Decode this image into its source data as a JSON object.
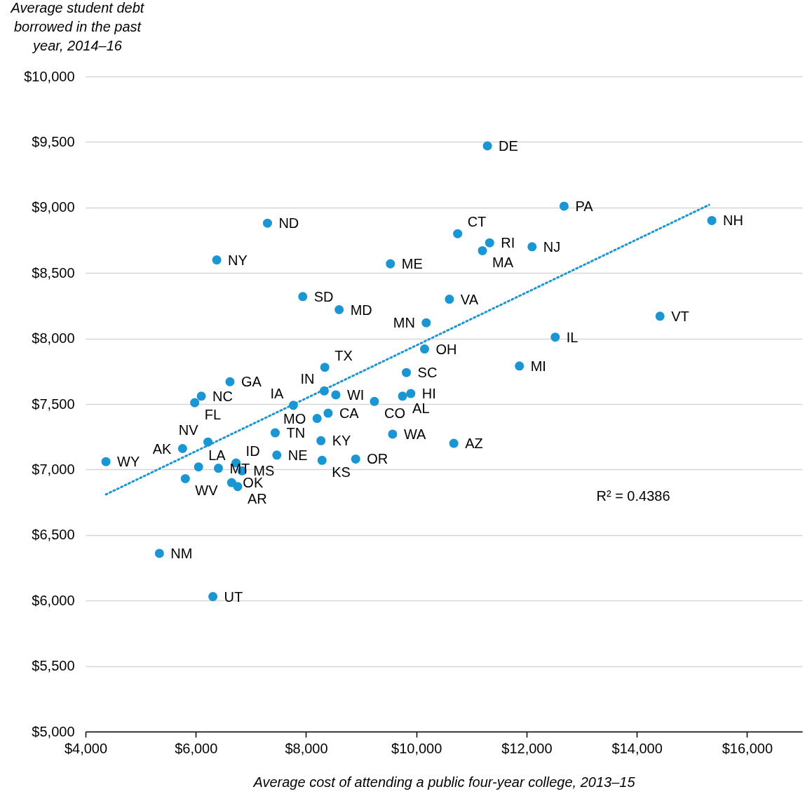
{
  "chart_data": {
    "type": "scatter",
    "xlabel": "Average cost of attending a public four-year college, 2013–15",
    "ylabel": "Average student debt borrowed in the past year, 2014–16",
    "xlim": [
      4000,
      17000
    ],
    "xticks": [
      {
        "value": 4000,
        "label": "$4,000"
      },
      {
        "value": 6000,
        "label": "$6,000"
      },
      {
        "value": 8000,
        "label": "$8,000"
      },
      {
        "value": 10000,
        "label": "$10,000"
      },
      {
        "value": 12000,
        "label": "$12,000"
      },
      {
        "value": 14000,
        "label": "$14,000"
      },
      {
        "value": 16000,
        "label": "$16,000"
      }
    ],
    "ylim": [
      5000,
      10000
    ],
    "yticks": [
      {
        "value": 5000,
        "label": "$5,000"
      },
      {
        "value": 5500,
        "label": "$5,500"
      },
      {
        "value": 6000,
        "label": "$6,000"
      },
      {
        "value": 6500,
        "label": "$6,500"
      },
      {
        "value": 7000,
        "label": "$7,000"
      },
      {
        "value": 7500,
        "label": "$7,500"
      },
      {
        "value": 8000,
        "label": "$8,000"
      },
      {
        "value": 8500,
        "label": "$8,500"
      },
      {
        "value": 9000,
        "label": "$9,000"
      },
      {
        "value": 9500,
        "label": "$9,500"
      },
      {
        "value": 10000,
        "label": "$10,000"
      }
    ],
    "grid": "y",
    "marker": "circle",
    "series": [
      {
        "color": "#1a96d4",
        "x": [
          11290,
          12680,
          15360,
          7300,
          10750,
          11330,
          11200,
          12100,
          6380,
          9530,
          7940,
          10600,
          8600,
          14420,
          10180,
          12520,
          10150,
          11870,
          8340,
          9820,
          6620,
          6100,
          5980,
          8330,
          8540,
          9750,
          9900,
          9240,
          7770,
          8400,
          8200,
          7440,
          9570,
          8270,
          10680,
          5760,
          6220,
          7470,
          8290,
          8900,
          4370,
          6730,
          6050,
          6410,
          6840,
          5810,
          6650,
          6760,
          5340,
          6310
        ],
        "values": [
          9470,
          9010,
          8900,
          8880,
          8800,
          8730,
          8670,
          8700,
          8600,
          8570,
          8320,
          8300,
          8220,
          8170,
          8120,
          8010,
          7920,
          7790,
          7780,
          7740,
          7670,
          7560,
          7510,
          7600,
          7570,
          7560,
          7580,
          7520,
          7490,
          7430,
          7390,
          7280,
          7270,
          7220,
          7200,
          7160,
          7210,
          7110,
          7070,
          7080,
          7060,
          7050,
          7020,
          7010,
          6990,
          6930,
          6900,
          6870,
          6360,
          6030
        ],
        "value_labels": [
          "DE",
          "PA",
          "NH",
          "ND",
          "CT",
          "RI",
          "MA",
          "NJ",
          "NY",
          "ME",
          "SD",
          "VA",
          "MD",
          "VT",
          "MN",
          "IL",
          "OH",
          "MI",
          "TX",
          "SC",
          "GA",
          "NC",
          "FL",
          "IN",
          "WI",
          "AL",
          "HI",
          "CO",
          "IA",
          "CA",
          "MO",
          "TN",
          "WA",
          "KY",
          "AZ",
          "AK",
          "NV",
          "NE",
          "KS",
          "OR",
          "WY",
          "ID",
          "LA",
          "MT",
          "MS",
          "WV",
          "OK",
          "AR",
          "NM",
          "UT"
        ]
      },
      {
        "type": "line",
        "color": "#1a96d4",
        "line_style": "dotted",
        "marker": "none",
        "x": [
          4370,
          15310
        ],
        "values": [
          6810,
          9020
        ]
      }
    ],
    "annotations": [
      "R² = 0.4386"
    ]
  }
}
